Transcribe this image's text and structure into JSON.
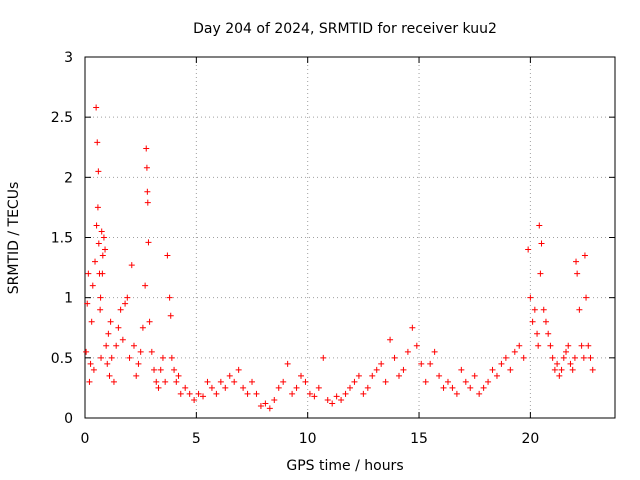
{
  "chart_data": {
    "type": "scatter",
    "title": "Day 204 of 2024, SRMTID for receiver kuu2",
    "xlabel": "GPS time / hours",
    "ylabel": "SRMTID / TECUs",
    "xlim": [
      0,
      23.8
    ],
    "ylim": [
      0,
      3
    ],
    "xticks": [
      0,
      5,
      10,
      15,
      20
    ],
    "xtick_labels": [
      "0",
      "5",
      "10",
      "15",
      "20"
    ],
    "yticks": [
      0,
      0.5,
      1,
      1.5,
      2,
      2.5,
      3
    ],
    "ytick_labels": [
      "0",
      "0.5",
      "1",
      "1.5",
      "2",
      "2.5",
      "3"
    ],
    "grid": true,
    "marker": "+",
    "series": [
      {
        "name": "SRMTID",
        "color": "#ff0000",
        "x": [
          0.05,
          0.1,
          0.15,
          0.2,
          0.25,
          0.3,
          0.35,
          0.4,
          0.45,
          0.5,
          0.52,
          0.55,
          0.58,
          0.6,
          0.62,
          0.65,
          0.68,
          0.7,
          0.72,
          0.75,
          0.78,
          0.8,
          0.85,
          0.9,
          0.95,
          1.0,
          1.05,
          1.1,
          1.15,
          1.2,
          1.3,
          1.4,
          1.5,
          1.6,
          1.7,
          1.8,
          1.9,
          2.0,
          2.1,
          2.2,
          2.3,
          2.4,
          2.5,
          2.6,
          2.7,
          2.75,
          2.78,
          2.8,
          2.82,
          2.85,
          2.9,
          3.0,
          3.1,
          3.2,
          3.3,
          3.4,
          3.5,
          3.6,
          3.7,
          3.8,
          3.85,
          3.9,
          4.0,
          4.1,
          4.2,
          4.3,
          4.5,
          4.7,
          4.9,
          5.1,
          5.3,
          5.5,
          5.7,
          5.9,
          6.1,
          6.3,
          6.5,
          6.7,
          6.9,
          7.1,
          7.3,
          7.5,
          7.7,
          7.9,
          8.1,
          8.3,
          8.5,
          8.7,
          8.9,
          9.1,
          9.3,
          9.5,
          9.7,
          9.9,
          10.1,
          10.3,
          10.5,
          10.7,
          10.9,
          11.1,
          11.3,
          11.5,
          11.7,
          11.9,
          12.1,
          12.3,
          12.5,
          12.7,
          12.9,
          13.1,
          13.3,
          13.5,
          13.7,
          13.9,
          14.1,
          14.3,
          14.5,
          14.7,
          14.9,
          15.1,
          15.3,
          15.5,
          15.7,
          15.9,
          16.1,
          16.3,
          16.5,
          16.7,
          16.9,
          17.1,
          17.3,
          17.5,
          17.7,
          17.9,
          18.1,
          18.3,
          18.5,
          18.7,
          18.9,
          19.1,
          19.3,
          19.5,
          19.7,
          19.9,
          20.0,
          20.1,
          20.2,
          20.3,
          20.35,
          20.4,
          20.45,
          20.5,
          20.6,
          20.7,
          20.8,
          20.9,
          21.0,
          21.1,
          21.2,
          21.3,
          21.4,
          21.5,
          21.6,
          21.7,
          21.8,
          21.9,
          22.0,
          22.05,
          22.1,
          22.2,
          22.3,
          22.4,
          22.45,
          22.5,
          22.6,
          22.7,
          22.8
        ],
        "y": [
          0.55,
          0.95,
          1.2,
          0.3,
          0.45,
          0.8,
          1.1,
          0.4,
          1.3,
          2.58,
          1.6,
          2.29,
          1.75,
          2.05,
          1.45,
          1.2,
          0.9,
          1.0,
          0.5,
          1.55,
          1.2,
          1.35,
          1.5,
          1.4,
          0.6,
          0.45,
          0.7,
          0.35,
          0.8,
          0.5,
          0.3,
          0.6,
          0.75,
          0.9,
          0.65,
          0.95,
          1.0,
          0.5,
          1.27,
          0.6,
          0.35,
          0.45,
          0.55,
          0.75,
          1.1,
          2.24,
          2.08,
          1.88,
          1.79,
          1.46,
          0.8,
          0.55,
          0.4,
          0.3,
          0.25,
          0.4,
          0.5,
          0.3,
          1.35,
          1.0,
          0.85,
          0.5,
          0.4,
          0.3,
          0.35,
          0.2,
          0.25,
          0.2,
          0.15,
          0.2,
          0.18,
          0.3,
          0.25,
          0.2,
          0.3,
          0.25,
          0.35,
          0.3,
          0.4,
          0.25,
          0.2,
          0.3,
          0.2,
          0.1,
          0.12,
          0.08,
          0.15,
          0.25,
          0.3,
          0.45,
          0.2,
          0.25,
          0.35,
          0.3,
          0.2,
          0.18,
          0.25,
          0.5,
          0.15,
          0.12,
          0.18,
          0.15,
          0.2,
          0.25,
          0.3,
          0.35,
          0.2,
          0.25,
          0.35,
          0.4,
          0.45,
          0.3,
          0.65,
          0.5,
          0.35,
          0.4,
          0.55,
          0.75,
          0.6,
          0.45,
          0.3,
          0.45,
          0.55,
          0.35,
          0.25,
          0.3,
          0.25,
          0.2,
          0.4,
          0.3,
          0.25,
          0.35,
          0.2,
          0.25,
          0.3,
          0.4,
          0.35,
          0.45,
          0.5,
          0.4,
          0.55,
          0.6,
          0.5,
          1.4,
          1.0,
          0.8,
          0.9,
          0.7,
          0.6,
          1.6,
          1.2,
          1.45,
          0.9,
          0.8,
          0.7,
          0.6,
          0.5,
          0.4,
          0.45,
          0.35,
          0.4,
          0.5,
          0.55,
          0.6,
          0.45,
          0.4,
          0.5,
          1.3,
          1.2,
          0.9,
          0.6,
          0.5,
          1.35,
          1.0,
          0.6,
          0.5,
          0.4
        ]
      }
    ]
  }
}
